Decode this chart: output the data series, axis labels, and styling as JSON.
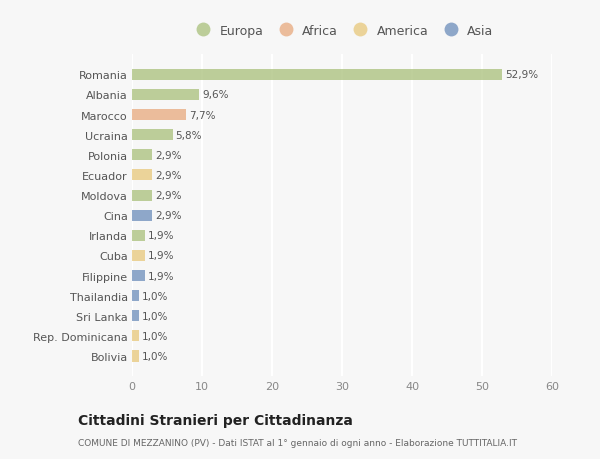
{
  "countries": [
    "Romania",
    "Albania",
    "Marocco",
    "Ucraina",
    "Polonia",
    "Ecuador",
    "Moldova",
    "Cina",
    "Irlanda",
    "Cuba",
    "Filippine",
    "Thailandia",
    "Sri Lanka",
    "Rep. Dominicana",
    "Bolivia"
  ],
  "values": [
    52.9,
    9.6,
    7.7,
    5.8,
    2.9,
    2.9,
    2.9,
    2.9,
    1.9,
    1.9,
    1.9,
    1.0,
    1.0,
    1.0,
    1.0
  ],
  "labels": [
    "52,9%",
    "9,6%",
    "7,7%",
    "5,8%",
    "2,9%",
    "2,9%",
    "2,9%",
    "2,9%",
    "1,9%",
    "1,9%",
    "1,9%",
    "1,0%",
    "1,0%",
    "1,0%",
    "1,0%"
  ],
  "colors": [
    "#a8c07a",
    "#a8c07a",
    "#e8a87c",
    "#a8c07a",
    "#a8c07a",
    "#e8c87a",
    "#a8c07a",
    "#6b8cba",
    "#a8c07a",
    "#e8c87a",
    "#6b8cba",
    "#6b8cba",
    "#6b8cba",
    "#e8c87a",
    "#e8c87a"
  ],
  "legend_labels": [
    "Europa",
    "Africa",
    "America",
    "Asia"
  ],
  "legend_colors": [
    "#a8c07a",
    "#e8a87c",
    "#e8c87a",
    "#6b8cba"
  ],
  "title": "Cittadini Stranieri per Cittadinanza",
  "subtitle": "COMUNE DI MEZZANINO (PV) - Dati ISTAT al 1° gennaio di ogni anno - Elaborazione TUTTITALIA.IT",
  "xlim": [
    0,
    60
  ],
  "xticks": [
    0,
    10,
    20,
    30,
    40,
    50,
    60
  ],
  "bg_color": "#f7f7f7",
  "grid_color": "#ffffff",
  "bar_alpha": 0.75
}
